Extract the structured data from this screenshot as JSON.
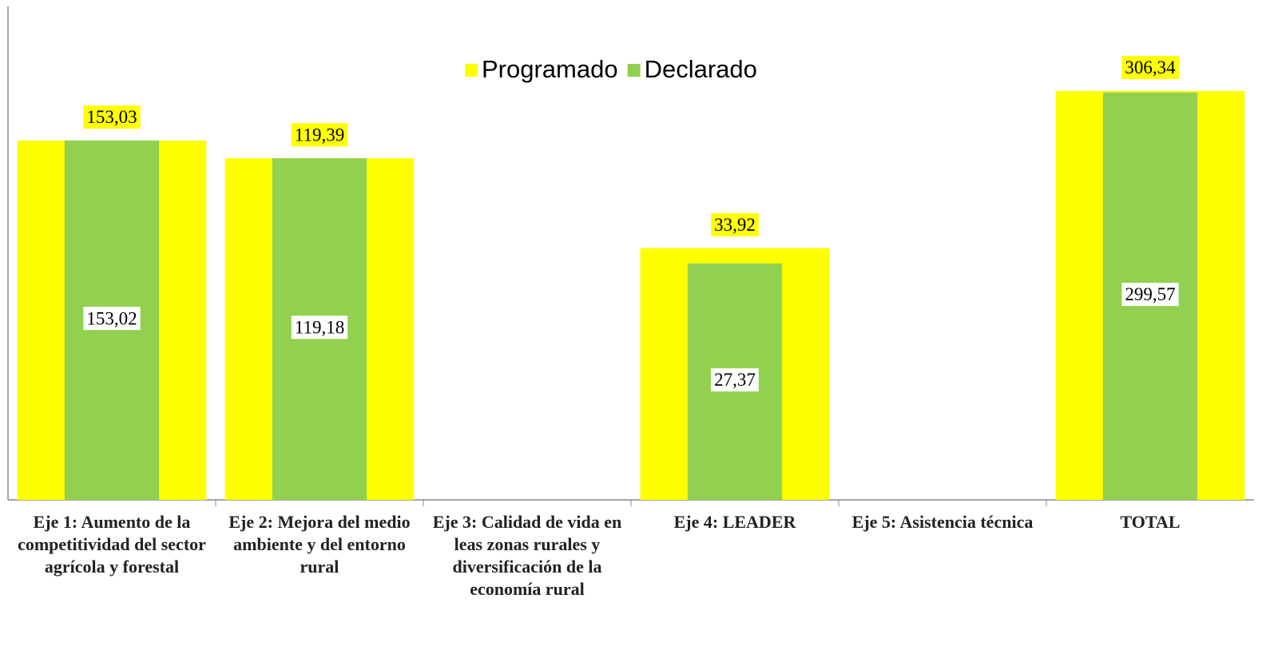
{
  "chart_data": {
    "type": "bar",
    "log_scale": true,
    "ylim": [
      1,
      1000
    ],
    "categories": [
      "Eje 1: Aumento de la competitividad del sector agrícola y forestal",
      "Eje 2: Mejora del medio ambiente y del entorno rural",
      "Eje 3: Calidad de vida en leas zonas rurales y diversificación de la economía rural",
      "Eje 4: LEADER",
      "Eje 5: Asistencia técnica",
      "TOTAL"
    ],
    "series": [
      {
        "name": "Programado",
        "color": "#ffff00",
        "values": [
          153.03,
          119.39,
          null,
          33.92,
          null,
          306.34
        ],
        "value_labels": [
          "153,03",
          "119,39",
          null,
          "33,92",
          null,
          "306,34"
        ]
      },
      {
        "name": "Declarado",
        "color": "#92d050",
        "values": [
          153.02,
          119.18,
          null,
          27.37,
          null,
          299.57
        ],
        "value_labels": [
          "153,02",
          "119,18",
          null,
          "27,37",
          null,
          "299,57"
        ]
      }
    ],
    "legend": "top"
  }
}
